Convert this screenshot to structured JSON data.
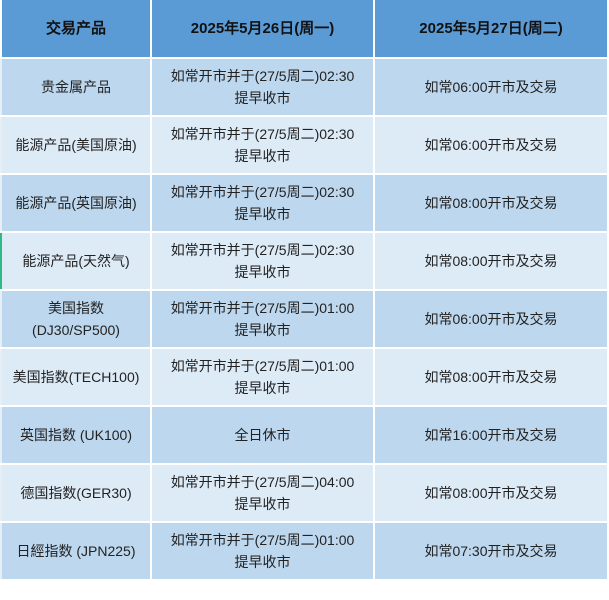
{
  "headers": [
    "交易产品",
    "2025年5月26日(周一)",
    "2025年5月27日(周二)"
  ],
  "rows": [
    {
      "product": "贵金属产品",
      "mon": [
        "如常开市并于(27/5周二)02:30",
        "提早收市"
      ],
      "tue": "如常06:00开市及交易"
    },
    {
      "product": "能源产品(美国原油)",
      "mon": [
        "如常开市并于(27/5周二)02:30",
        "提早收市"
      ],
      "tue": "如常06:00开市及交易"
    },
    {
      "product": "能源产品(英国原油)",
      "mon": [
        "如常开市并于(27/5周二)02:30",
        "提早收市"
      ],
      "tue": "如常08:00开市及交易"
    },
    {
      "product": "能源产品(天然气)",
      "mon": [
        "如常开市并于(27/5周二)02:30",
        "提早收市"
      ],
      "tue": "如常08:00开市及交易"
    },
    {
      "product": "美国指数\n(DJ30/SP500)",
      "mon": [
        "如常开市并于(27/5周二)01:00",
        "提早收市"
      ],
      "tue": "如常06:00开市及交易"
    },
    {
      "product": "美国指数(TECH100)",
      "mon": [
        "如常开市并于(27/5周二)01:00",
        "提早收市"
      ],
      "tue": "如常08:00开市及交易"
    },
    {
      "product": "英国指数 (UK100)",
      "mon": [
        "全日休市"
      ],
      "tue": "如常16:00开市及交易"
    },
    {
      "product": "德国指数(GER30)",
      "mon": [
        "如常开市并于(27/5周二)04:00",
        "提早收市"
      ],
      "tue": "如常08:00开市及交易"
    },
    {
      "product": "日經指数 (JPN225)",
      "mon": [
        "如常开市并于(27/5周二)01:00",
        "提早收市"
      ],
      "tue": "如常07:30开市及交易"
    }
  ],
  "colors": {
    "header": "#5b9bd5",
    "row_odd": "#bdd7ee",
    "row_even": "#ddebf7"
  }
}
